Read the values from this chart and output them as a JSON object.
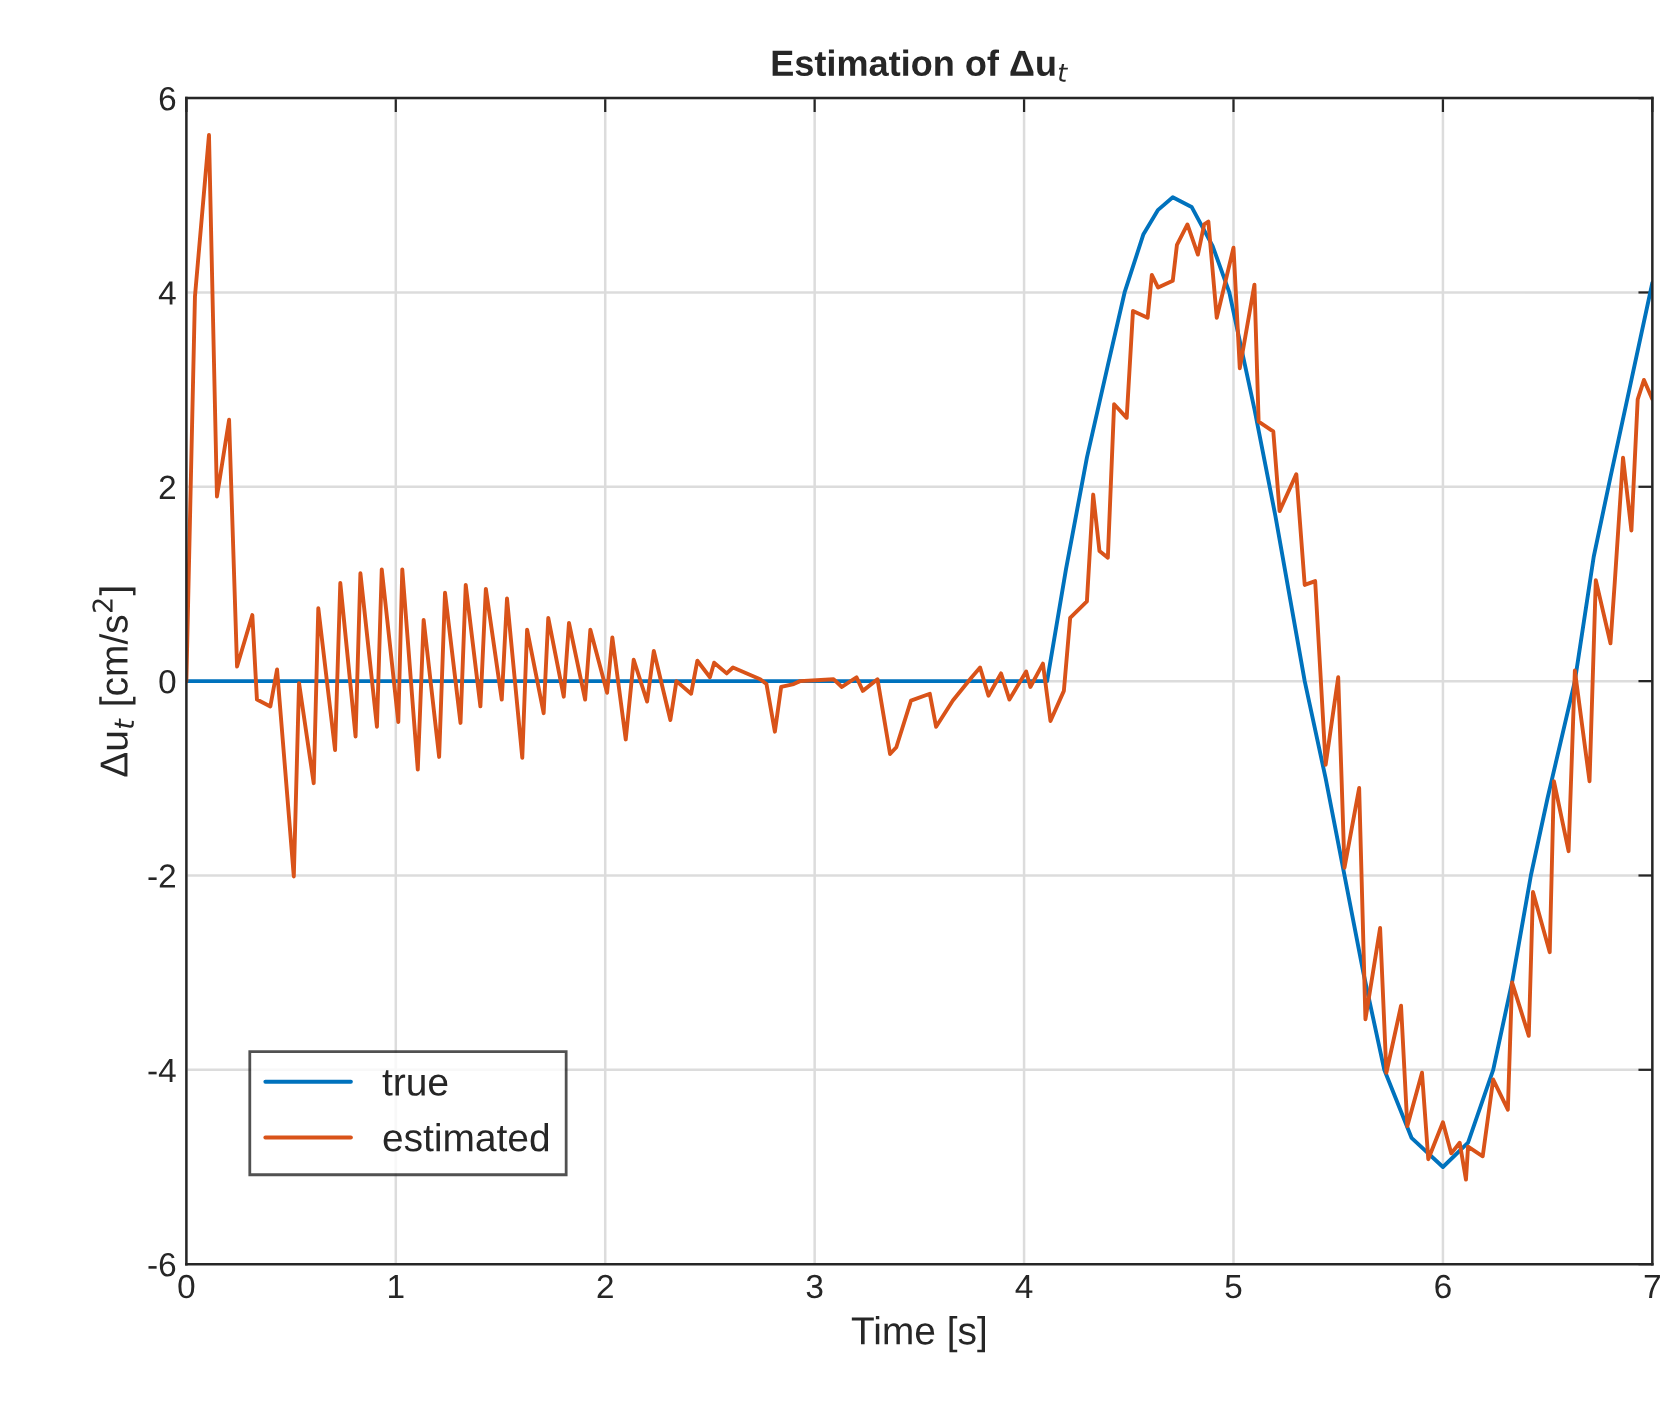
{
  "chart_data": {
    "type": "line",
    "title": "Estimation of Δu$_{t}$",
    "xlabel": "Time [s]",
    "ylabel": "Δu$_{t}$ [cm/s$^{2}$]",
    "xlim": [
      0,
      7
    ],
    "ylim": [
      -6,
      6
    ],
    "xticks": [
      0,
      1,
      2,
      3,
      4,
      5,
      6,
      7
    ],
    "yticks": [
      -6,
      -4,
      -2,
      0,
      2,
      4,
      6
    ],
    "grid": true,
    "legend": "bottom left",
    "series": [
      {
        "name": "true",
        "color": "#0072bd",
        "x": [
          0,
          4.11,
          4.2,
          4.3,
          4.4,
          4.48,
          4.57,
          4.64,
          4.71,
          4.8,
          4.9,
          4.98,
          5.1,
          5.2,
          5.34,
          5.44,
          5.53,
          5.62,
          5.72,
          5.85,
          6.0,
          6.12,
          6.24,
          6.33,
          6.42,
          6.5,
          6.63,
          6.72,
          6.8,
          6.9,
          7.0
        ],
        "values": [
          0,
          0,
          1.15,
          2.3,
          3.25,
          4.0,
          4.6,
          4.85,
          4.98,
          4.88,
          4.48,
          4.0,
          2.8,
          1.7,
          0,
          -1.0,
          -2.0,
          -3.0,
          -4.0,
          -4.7,
          -5.0,
          -4.75,
          -4.0,
          -3.1,
          -2.0,
          -1.2,
          0,
          1.28,
          2.1,
          3.1,
          4.1
        ]
      },
      {
        "name": "estimated",
        "color": "#d95319",
        "x": [
          0,
          0.041,
          0.108,
          0.146,
          0.204,
          0.242,
          0.315,
          0.337,
          0.401,
          0.433,
          0.513,
          0.538,
          0.608,
          0.63,
          0.71,
          0.735,
          0.808,
          0.831,
          0.91,
          0.933,
          1.012,
          1.031,
          1.105,
          1.133,
          1.207,
          1.235,
          1.309,
          1.334,
          1.404,
          1.43,
          1.506,
          1.531,
          1.604,
          1.627,
          1.706,
          1.728,
          1.802,
          1.827,
          1.904,
          1.929,
          2.009,
          2.034,
          2.098,
          2.136,
          2.2,
          2.232,
          2.311,
          2.34,
          2.41,
          2.44,
          2.5,
          2.52,
          2.58,
          2.61,
          2.74,
          2.77,
          2.81,
          2.84,
          2.9,
          2.93,
          3.09,
          3.13,
          3.2,
          3.23,
          3.3,
          3.36,
          3.39,
          3.46,
          3.55,
          3.58,
          3.66,
          3.75,
          3.79,
          3.83,
          3.89,
          3.93,
          4.01,
          4.03,
          4.09,
          4.126,
          4.19,
          4.22,
          4.3,
          4.33,
          4.36,
          4.4,
          4.43,
          4.49,
          4.52,
          4.59,
          4.61,
          4.64,
          4.71,
          4.73,
          4.78,
          4.83,
          4.86,
          4.88,
          4.92,
          5.0,
          5.03,
          5.1,
          5.12,
          5.19,
          5.22,
          5.3,
          5.34,
          5.39,
          5.44,
          5.5,
          5.53,
          5.6,
          5.63,
          5.7,
          5.73,
          5.8,
          5.83,
          5.9,
          5.93,
          6.0,
          6.04,
          6.08,
          6.11,
          6.12,
          6.19,
          6.24,
          6.31,
          6.33,
          6.41,
          6.43,
          6.51,
          6.53,
          6.6,
          6.63,
          6.7,
          6.73,
          6.8,
          6.82,
          6.86,
          6.9,
          6.93,
          6.96,
          7.0
        ],
        "values": [
          0,
          3.96,
          5.62,
          1.9,
          2.69,
          0.15,
          0.68,
          -0.19,
          -0.26,
          0.12,
          -2.01,
          -0.02,
          -1.05,
          0.75,
          -0.71,
          1.01,
          -0.57,
          1.11,
          -0.47,
          1.15,
          -0.42,
          1.15,
          -0.91,
          0.63,
          -0.78,
          0.91,
          -0.43,
          0.99,
          -0.26,
          0.95,
          -0.19,
          0.85,
          -0.79,
          0.53,
          -0.33,
          0.65,
          -0.16,
          0.6,
          -0.19,
          0.53,
          -0.12,
          0.45,
          -0.6,
          0.22,
          -0.21,
          0.31,
          -0.4,
          0,
          -0.13,
          0.21,
          0.04,
          0.19,
          0.08,
          0.14,
          0.02,
          -0.03,
          -0.52,
          -0.06,
          -0.03,
          0,
          0.02,
          -0.06,
          0.04,
          -0.1,
          0.02,
          -0.75,
          -0.68,
          -0.2,
          -0.13,
          -0.47,
          -0.2,
          0.04,
          0.14,
          -0.15,
          0.08,
          -0.19,
          0.1,
          -0.06,
          0.18,
          -0.41,
          -0.1,
          0.65,
          0.82,
          1.92,
          1.34,
          1.27,
          2.85,
          2.71,
          3.81,
          3.74,
          4.18,
          4.05,
          4.12,
          4.49,
          4.7,
          4.39,
          4.7,
          4.73,
          3.74,
          4.46,
          3.22,
          4.08,
          2.67,
          2.57,
          1.75,
          2.13,
          0.99,
          1.03,
          -0.86,
          0.04,
          -1.92,
          -1.1,
          -3.48,
          -2.54,
          -4.03,
          -3.34,
          -4.58,
          -4.03,
          -4.92,
          -4.54,
          -4.86,
          -4.75,
          -5.13,
          -4.79,
          -4.89,
          -4.1,
          -4.41,
          -3.1,
          -3.65,
          -2.17,
          -2.79,
          -1.03,
          -1.75,
          0.11,
          -1.03,
          1.04,
          0.39,
          1.0,
          2.3,
          1.55,
          2.9,
          3.1,
          2.9
        ]
      }
    ]
  }
}
